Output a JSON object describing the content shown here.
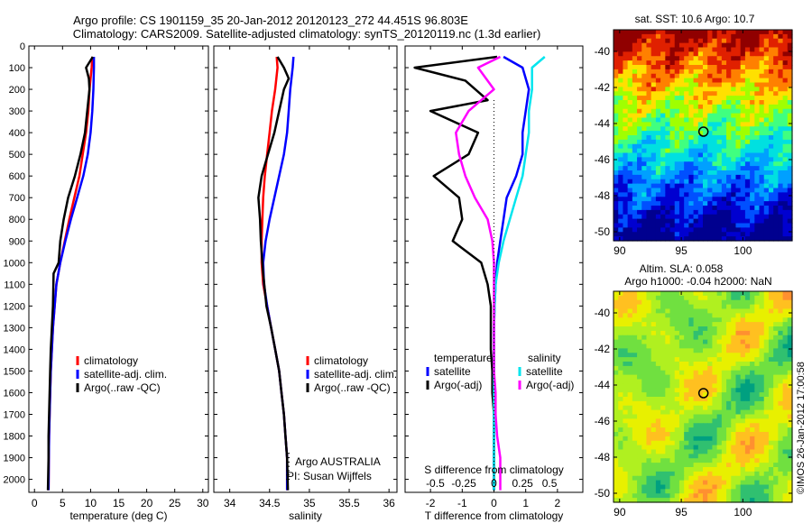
{
  "header": {
    "title_line1": "Argo profile: CS 1901159_35 20-Jan-2012 20120123_272 44.451S 96.803E",
    "title_line2": "Climatology: CARS2009. Satellite-adjusted climatology: synTS_20120119.nc (1.3d earlier)"
  },
  "side_label": "©IMOS 26-Jan-2012 17:00:58",
  "colors": {
    "climatology": "#ff0000",
    "satellite": "#0000ff",
    "argo": "#000000",
    "sal_satellite": "#00e5ee",
    "sal_argo": "#ff00ff",
    "marker": "#000000"
  },
  "chart_data": [
    {
      "type": "line",
      "id": "temperature",
      "xlabel": "temperature (deg C)",
      "xlim": [
        -1,
        31
      ],
      "xticks": [
        0,
        5,
        10,
        15,
        20,
        25,
        30
      ],
      "ylim": [
        2060,
        0
      ],
      "yticks": [
        0,
        100,
        200,
        300,
        400,
        500,
        600,
        700,
        800,
        900,
        1000,
        1100,
        1200,
        1300,
        1400,
        1500,
        1600,
        1700,
        1800,
        1900,
        2000
      ],
      "legend": [
        "climatology",
        "satellite-adj. clim.",
        "Argo(..raw -QC)"
      ],
      "series": [
        {
          "name": "climatology",
          "color_key": "climatology",
          "x": [
            10.3,
            10.2,
            9.8,
            9.6,
            9.2,
            8.6,
            8.0,
            7.1,
            6.2,
            5.4,
            4.6,
            3.9,
            3.6,
            3.3,
            3.1,
            2.9,
            2.8,
            2.7,
            2.6,
            2.55,
            2.5
          ],
          "y": [
            50,
            100,
            200,
            300,
            400,
            500,
            600,
            700,
            800,
            900,
            1000,
            1100,
            1200,
            1300,
            1400,
            1500,
            1600,
            1700,
            1800,
            1900,
            2050
          ]
        },
        {
          "name": "satellite-adj. clim.",
          "color_key": "satellite",
          "x": [
            10.6,
            10.6,
            10.5,
            10.3,
            10.0,
            9.5,
            8.7,
            7.6,
            6.5,
            5.5,
            4.6,
            3.9,
            3.6,
            3.3,
            3.1,
            2.9,
            2.8,
            2.7,
            2.6,
            2.55,
            2.5
          ],
          "y": [
            50,
            100,
            200,
            300,
            400,
            500,
            600,
            700,
            800,
            900,
            1000,
            1100,
            1200,
            1300,
            1400,
            1500,
            1600,
            1700,
            1800,
            1900,
            2050
          ]
        },
        {
          "name": "Argo(..raw -QC)",
          "color_key": "argo",
          "x": [
            10.4,
            9.2,
            9.7,
            9.8,
            9.4,
            9.0,
            8.2,
            7.2,
            6.0,
            5.2,
            4.6,
            4.3,
            3.4,
            3.3,
            3.1,
            2.9,
            2.8,
            2.7,
            2.6,
            2.5,
            2.5,
            2.4
          ],
          "y": [
            50,
            100,
            150,
            200,
            300,
            400,
            500,
            600,
            700,
            800,
            900,
            1000,
            1050,
            1200,
            1300,
            1400,
            1500,
            1600,
            1700,
            1800,
            1900,
            2050
          ]
        }
      ]
    },
    {
      "type": "line",
      "id": "salinity",
      "xlabel": "salinity",
      "xlim": [
        33.8,
        36.1
      ],
      "xticks": [
        34,
        34.5,
        35,
        35.5,
        36
      ],
      "ylim": [
        2060,
        0
      ],
      "legend": [
        "climatology",
        "satellite-adj. clim.",
        "Argo(..raw -QC)"
      ],
      "annotation": [
        "Argo AUSTRALIA",
        "PI: Susan Wijffels"
      ],
      "series": [
        {
          "name": "climatology",
          "color_key": "climatology",
          "x": [
            34.59,
            34.6,
            34.57,
            34.53,
            34.5,
            34.47,
            34.44,
            34.42,
            34.41,
            34.4,
            34.4,
            34.42,
            34.47,
            34.52,
            34.57,
            34.62,
            34.65,
            34.68,
            34.7,
            34.72,
            34.72
          ],
          "y": [
            50,
            100,
            200,
            300,
            400,
            500,
            600,
            700,
            800,
            900,
            1000,
            1100,
            1200,
            1300,
            1400,
            1500,
            1600,
            1700,
            1800,
            1900,
            2050
          ]
        },
        {
          "name": "satellite-adj. clim.",
          "color_key": "satellite",
          "x": [
            34.8,
            34.79,
            34.76,
            34.74,
            34.72,
            34.68,
            34.62,
            34.56,
            34.5,
            34.45,
            34.42,
            34.43,
            34.47,
            34.52,
            34.57,
            34.62,
            34.65,
            34.68,
            34.7,
            34.72,
            34.72
          ],
          "y": [
            50,
            100,
            200,
            300,
            400,
            500,
            600,
            700,
            800,
            900,
            1000,
            1100,
            1200,
            1300,
            1400,
            1500,
            1600,
            1700,
            1800,
            1900,
            2050
          ]
        },
        {
          "name": "Argo(..raw -QC)",
          "color_key": "argo",
          "x": [
            34.6,
            34.68,
            34.74,
            34.68,
            34.62,
            34.56,
            34.48,
            34.4,
            34.36,
            34.38,
            34.39,
            34.41,
            34.42,
            34.46,
            34.52,
            34.57,
            34.62,
            34.65,
            34.68,
            34.7,
            34.72,
            34.73
          ],
          "y": [
            50,
            100,
            150,
            200,
            300,
            400,
            500,
            600,
            700,
            800,
            900,
            1000,
            1050,
            1200,
            1300,
            1400,
            1500,
            1600,
            1700,
            1800,
            1900,
            2050
          ]
        }
      ]
    },
    {
      "type": "line",
      "id": "difference",
      "xlabel": "T difference from climatology",
      "xlim": [
        -2.8,
        2.8
      ],
      "xticks": [
        -2,
        -1,
        0,
        1,
        2
      ],
      "xlabel_top": "S difference from climatology",
      "xticks_top": [
        "-0.5",
        "-0.25",
        "0",
        "0.25",
        "0.5"
      ],
      "ylim": [
        2060,
        0
      ],
      "legend_temperature_title": "temperature",
      "legend_salinity_title": "salinity",
      "legend": [
        "satellite",
        "Argo(-adj)",
        "satellite",
        "Argo(-adj)"
      ],
      "series": [
        {
          "name": "satellite",
          "group": "temperature",
          "color_key": "satellite",
          "x": [
            0.3,
            0.9,
            1.1,
            1.0,
            0.9,
            0.9,
            0.7,
            0.4,
            0.3,
            0.2,
            0.1,
            0.05,
            0.02,
            0.0,
            0.0,
            0.0,
            0.0,
            0.0,
            0.0,
            0.0,
            0.0
          ],
          "y": [
            50,
            100,
            200,
            300,
            400,
            500,
            600,
            700,
            800,
            900,
            1000,
            1100,
            1200,
            1300,
            1400,
            1500,
            1600,
            1700,
            1800,
            1900,
            2050
          ]
        },
        {
          "name": "Argo(-adj)",
          "group": "temperature",
          "color_key": "argo",
          "x": [
            0.1,
            -2.5,
            -0.9,
            -0.2,
            -2.0,
            -0.5,
            -0.8,
            -1.9,
            -1.1,
            -1.0,
            -1.3,
            -0.4,
            -0.2,
            -0.1,
            -0.1,
            -0.1,
            -0.05,
            -0.05,
            0.0,
            0.0,
            0.0
          ],
          "y": [
            50,
            100,
            160,
            250,
            300,
            400,
            500,
            600,
            700,
            800,
            900,
            1000,
            1100,
            1200,
            1300,
            1400,
            1500,
            1600,
            1700,
            1800,
            2050
          ]
        },
        {
          "name": "satellite",
          "group": "salinity",
          "color_key": "sal_satellite",
          "x": [
            1.6,
            1.2,
            1.2,
            1.1,
            1.1,
            1.0,
            0.9,
            0.7,
            0.5,
            0.3,
            0.15,
            0.05,
            0.02,
            0.0,
            0.0,
            0.0,
            0.0,
            0.0,
            0.0,
            0.0,
            0.0
          ],
          "y": [
            50,
            100,
            200,
            300,
            400,
            500,
            600,
            700,
            800,
            900,
            1000,
            1100,
            1200,
            1300,
            1400,
            1500,
            1600,
            1700,
            1800,
            1900,
            2050
          ]
        },
        {
          "name": "Argo(-adj)",
          "group": "salinity",
          "color_key": "sal_argo",
          "x": [
            0.2,
            -0.5,
            0.0,
            -0.8,
            -1.2,
            -1.1,
            -0.9,
            -0.6,
            -0.2,
            -0.05,
            0.0,
            0.0,
            0.0,
            0.0,
            0.0,
            0.0,
            0.05,
            0.05,
            0.1,
            0.2,
            0.2
          ],
          "y": [
            50,
            100,
            200,
            300,
            400,
            500,
            600,
            700,
            800,
            900,
            1000,
            1100,
            1200,
            1300,
            1400,
            1500,
            1600,
            1700,
            1800,
            1900,
            2050
          ]
        }
      ]
    },
    {
      "type": "heatmap",
      "id": "sst_map",
      "title": "sat. SST: 10.6 Argo: 10.7",
      "xlim": [
        89.5,
        104
      ],
      "xticks": [
        90,
        95,
        100
      ],
      "ylim": [
        -50.5,
        -38.8
      ],
      "yticks": [
        -40,
        -42,
        -44,
        -46,
        -48,
        -50
      ],
      "marker": {
        "lon": 96.8,
        "lat": -44.45
      },
      "palette": [
        "#00008f",
        "#0000d0",
        "#0050ff",
        "#00a0ff",
        "#00e0e0",
        "#40ff80",
        "#a0ff00",
        "#ffe000",
        "#ff8000",
        "#e02000",
        "#900000"
      ]
    },
    {
      "type": "heatmap",
      "id": "sla_map",
      "title_line1": "Altim. SLA: 0.058",
      "title_line2": "Argo h1000: -0.04 h2000: NaN",
      "xlim": [
        89.5,
        104
      ],
      "xticks": [
        90,
        95,
        100
      ],
      "ylim": [
        -50.5,
        -38.8
      ],
      "yticks": [
        -40,
        -42,
        -44,
        -46,
        -48,
        -50
      ],
      "marker": {
        "lon": 96.8,
        "lat": -44.45
      },
      "palette": [
        "#00a080",
        "#30c070",
        "#70e040",
        "#b0f020",
        "#e8f000",
        "#ffc020",
        "#ff9030"
      ]
    }
  ]
}
